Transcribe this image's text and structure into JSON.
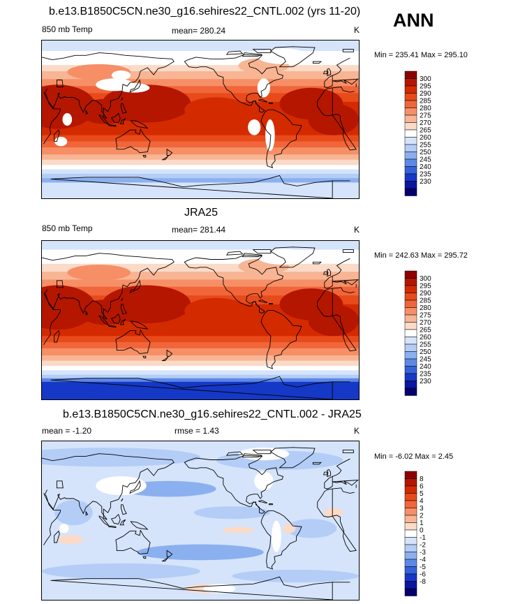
{
  "season": "ANN",
  "panels": [
    {
      "id": "model",
      "title": "b.e13.B1850C5CN.ne30_g16.sehires22_CNTL.002 (yrs 11-20)",
      "left_label": "850 mb Temp",
      "center_label": "mean= 280.24",
      "right_label": "K",
      "minmax": "Min = 235.41 Max = 295.10",
      "colorbar_levels": [
        "300",
        "295",
        "290",
        "285",
        "280",
        "275",
        "270",
        "265",
        "260",
        "255",
        "250",
        "245",
        "240",
        "235",
        "230"
      ],
      "colorbar_colors": [
        "#8e0000",
        "#b41600",
        "#d42a00",
        "#e84a1a",
        "#f0663a",
        "#f68f66",
        "#f8b594",
        "#fbdac8",
        "#ffffff",
        "#d5e4fb",
        "#b3cdf7",
        "#8bb0f0",
        "#5d88e6",
        "#3462da",
        "#1538c6",
        "#0a16a0",
        "#05006e"
      ],
      "field_type": "abs"
    },
    {
      "id": "obs",
      "title": "JRA25",
      "left_label": "850 mb Temp",
      "center_label": "mean= 281.44",
      "right_label": "K",
      "minmax": "Min = 242.63 Max = 295.72",
      "colorbar_levels": [
        "300",
        "295",
        "290",
        "285",
        "280",
        "275",
        "270",
        "265",
        "260",
        "255",
        "250",
        "245",
        "240",
        "235",
        "230"
      ],
      "colorbar_colors": [
        "#8e0000",
        "#b41600",
        "#d42a00",
        "#e84a1a",
        "#f0663a",
        "#f68f66",
        "#f8b594",
        "#fbdac8",
        "#ffffff",
        "#d5e4fb",
        "#b3cdf7",
        "#8bb0f0",
        "#5d88e6",
        "#3462da",
        "#1538c6",
        "#0a16a0",
        "#05006e"
      ],
      "field_type": "abs"
    },
    {
      "id": "diff",
      "title": "b.e13.B1850C5CN.ne30_g16.sehires22_CNTL.002 - JRA25",
      "left_label": "mean =  -1.20",
      "center_label": "rmse =   1.43",
      "right_label": "K",
      "minmax": "Min =  -6.02 Max =   2.45",
      "colorbar_levels": [
        "8",
        "6",
        "5",
        "4",
        "3",
        "2",
        "1",
        "0",
        "-1",
        "-2",
        "-3",
        "-4",
        "-5",
        "-6",
        "-8"
      ],
      "colorbar_colors": [
        "#8e0000",
        "#b41600",
        "#d42a00",
        "#e84a1a",
        "#f0663a",
        "#f68f66",
        "#f8b594",
        "#fbdac8",
        "#ffffff",
        "#d5e4fb",
        "#b3cdf7",
        "#8bb0f0",
        "#5d88e6",
        "#3462da",
        "#1538c6",
        "#0a16a0",
        "#05006e"
      ],
      "field_type": "diff"
    }
  ]
}
